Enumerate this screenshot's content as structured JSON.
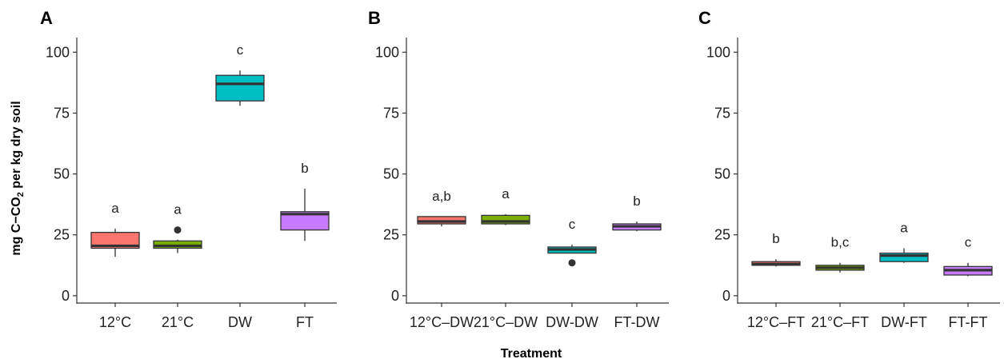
{
  "figure": {
    "xlabel": "Treatment",
    "ylabel_prefix": "mg C−CO",
    "ylabel_subscript": "2",
    "ylabel_suffix": " per kg dry soil"
  },
  "chart_data": [
    {
      "type": "box",
      "panel_label": "A",
      "ylim": [
        -3,
        106
      ],
      "yticks": [
        0,
        25,
        50,
        75,
        100
      ],
      "grid": false,
      "categories": [
        "12°C",
        "21°C",
        "DW",
        "FT"
      ],
      "boxes": [
        {
          "category": "12°C",
          "color": "#F8766D",
          "whisker_low": 16,
          "q1": 19.5,
          "median": 20.5,
          "q3": 26,
          "whisker_high": 27.5,
          "outliers": [],
          "significance": "a"
        },
        {
          "category": "21°C",
          "color": "#7CAE00",
          "whisker_low": 17.5,
          "q1": 19.5,
          "median": 20.5,
          "q3": 22.5,
          "whisker_high": 23,
          "outliers": [
            27
          ],
          "significance": "a"
        },
        {
          "category": "DW",
          "color": "#00BFC4",
          "whisker_low": 78,
          "q1": 80,
          "median": 87,
          "q3": 90.5,
          "whisker_high": 92.5,
          "outliers": [],
          "significance": "c"
        },
        {
          "category": "FT",
          "color": "#C77CFF",
          "whisker_low": 22.5,
          "q1": 27,
          "median": 33.5,
          "q3": 34.5,
          "whisker_high": 44,
          "outliers": [],
          "significance": "b"
        }
      ]
    },
    {
      "type": "box",
      "panel_label": "B",
      "ylim": [
        -3,
        106
      ],
      "yticks": [
        0,
        25,
        50,
        75,
        100
      ],
      "grid": false,
      "categories": [
        "12°C–DW",
        "21°C–DW",
        "DW-DW",
        "FT-DW"
      ],
      "boxes": [
        {
          "category": "12°C–DW",
          "color": "#F8766D",
          "whisker_low": 28.5,
          "q1": 29.5,
          "median": 30.5,
          "q3": 32.5,
          "whisker_high": 32.5,
          "outliers": [],
          "significance": "a,b"
        },
        {
          "category": "21°C–DW",
          "color": "#7CAE00",
          "whisker_low": 29,
          "q1": 29.5,
          "median": 30.5,
          "q3": 33,
          "whisker_high": 33.5,
          "outliers": [],
          "significance": "a"
        },
        {
          "category": "DW-DW",
          "color": "#00BFC4",
          "whisker_low": 17.5,
          "q1": 17.5,
          "median": 19,
          "q3": 20,
          "whisker_high": 21,
          "outliers": [
            13.5
          ],
          "significance": "c"
        },
        {
          "category": "FT-DW",
          "color": "#C77CFF",
          "whisker_low": 26.5,
          "q1": 27,
          "median": 28.5,
          "q3": 29.5,
          "whisker_high": 30.5,
          "outliers": [],
          "significance": "b"
        }
      ]
    },
    {
      "type": "box",
      "panel_label": "C",
      "ylim": [
        -3,
        106
      ],
      "yticks": [
        0,
        25,
        50,
        75,
        100
      ],
      "grid": false,
      "categories": [
        "12°C–FT",
        "21°C–FT",
        "DW-FT",
        "FT-FT"
      ],
      "boxes": [
        {
          "category": "12°C–FT",
          "color": "#F8766D",
          "whisker_low": 12,
          "q1": 12.5,
          "median": 13,
          "q3": 14,
          "whisker_high": 15,
          "outliers": [],
          "significance": "b"
        },
        {
          "category": "21°C–FT",
          "color": "#7CAE00",
          "whisker_low": 9.5,
          "q1": 10.5,
          "median": 11.5,
          "q3": 12.5,
          "whisker_high": 13.5,
          "outliers": [],
          "significance": "b,c"
        },
        {
          "category": "DW-FT",
          "color": "#00BFC4",
          "whisker_low": 13.5,
          "q1": 14,
          "median": 16.5,
          "q3": 17.5,
          "whisker_high": 19.5,
          "outliers": [],
          "significance": "a"
        },
        {
          "category": "FT-FT",
          "color": "#C77CFF",
          "whisker_low": 8,
          "q1": 8.5,
          "median": 10.5,
          "q3": 12,
          "whisker_high": 13.5,
          "outliers": [],
          "significance": "c"
        }
      ]
    }
  ]
}
